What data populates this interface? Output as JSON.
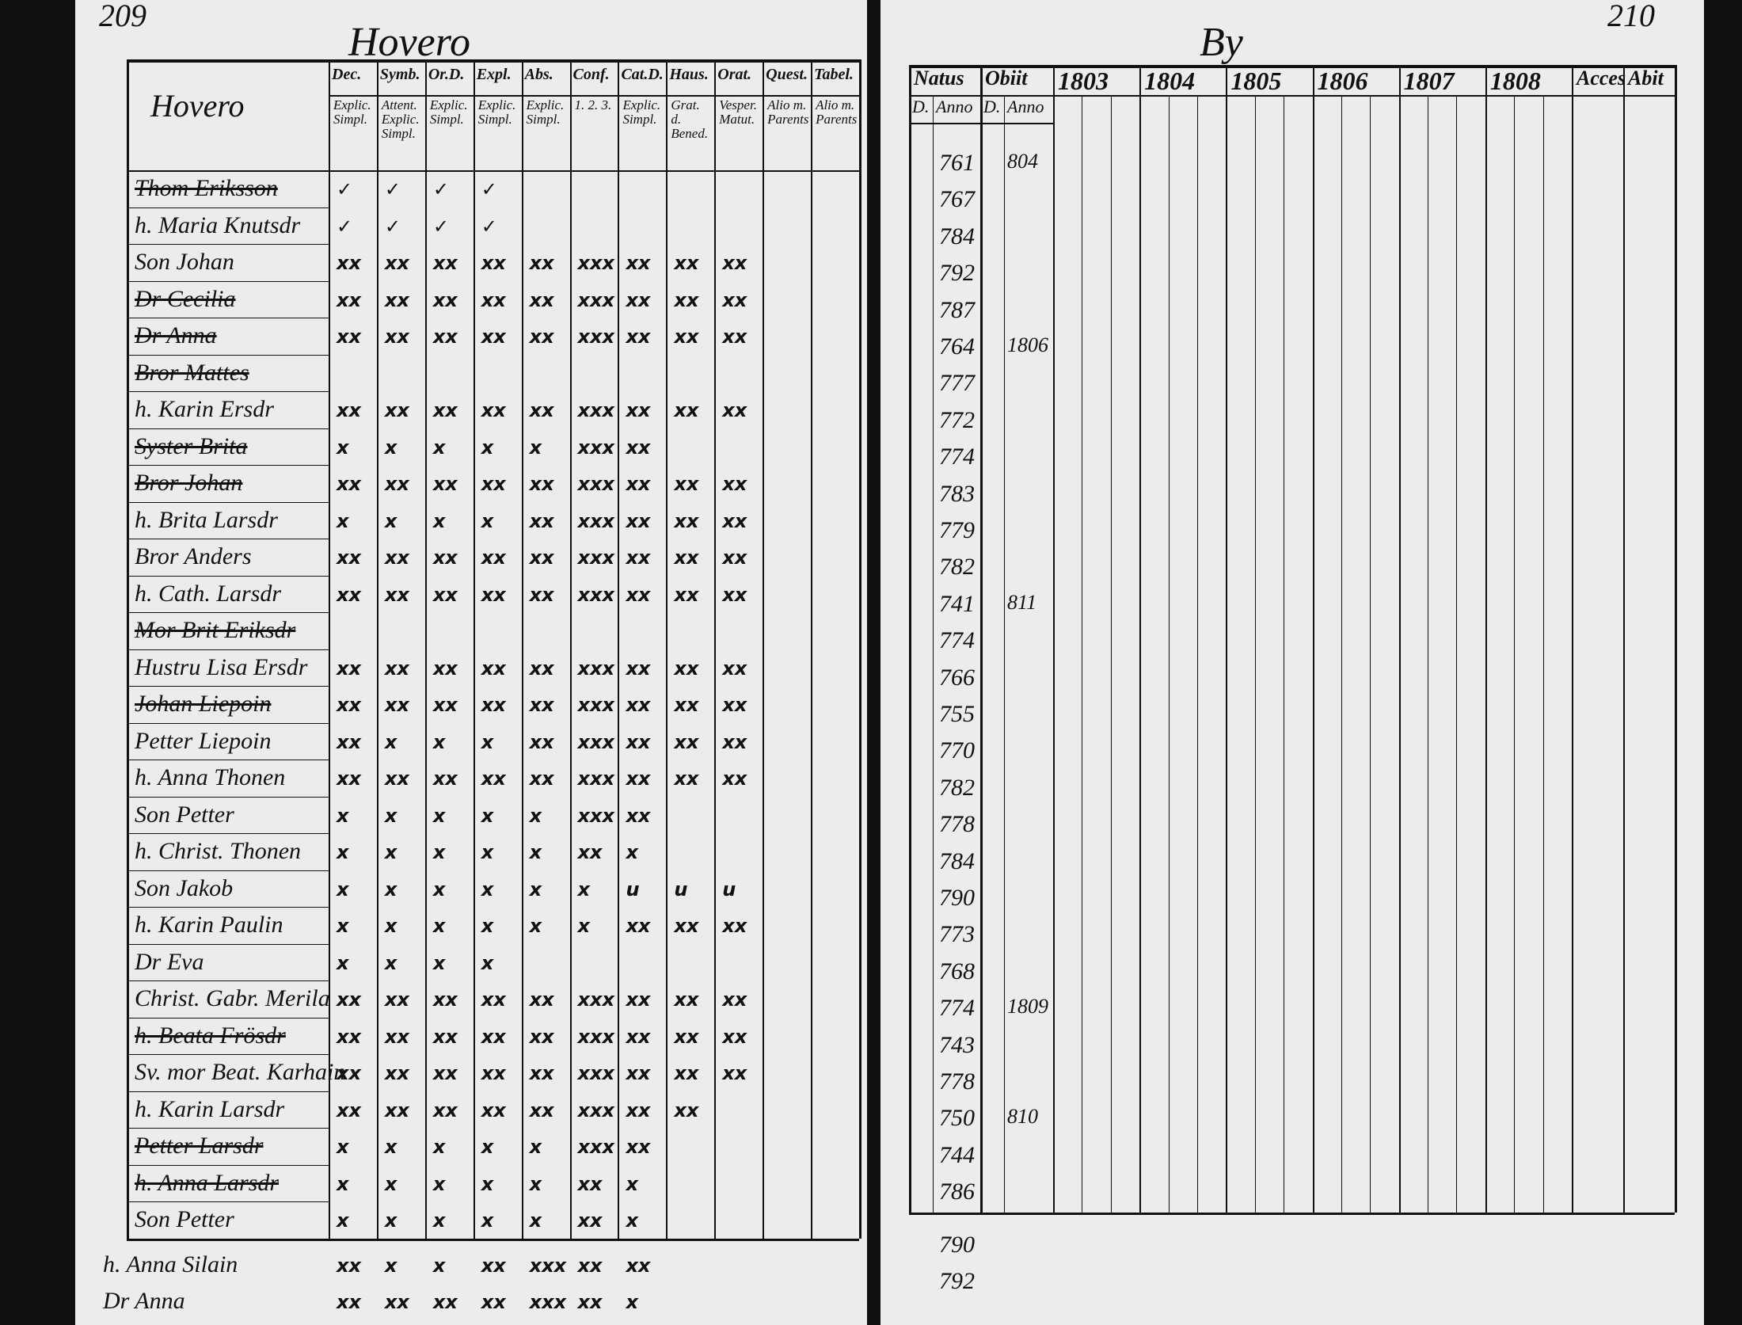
{
  "left_page": {
    "page_number": "209",
    "title": "Hovero",
    "name_header": "Hovero",
    "headings": [
      "Dec.",
      "Symb.",
      "Or.D.",
      "Expl.",
      "Abs.",
      "Conf.",
      "Cat.D.",
      "Haus.",
      "Orat.",
      "Quest.",
      "Tabel."
    ],
    "sub_headings": [
      "Explic. Simpl.",
      "Attent. Explic. Simpl.",
      "Explic. Simpl.",
      "Explic. Simpl.",
      "Explic. Simpl.",
      "1. 2. 3.",
      "Explic. Simpl.",
      "Grat. d. Bened.",
      "Vesper. Matut.",
      "Alio m. Parents",
      "Alio m. Parents"
    ],
    "rows": [
      {
        "name": "Thom Eriksson",
        "struck": true,
        "marks": [
          "✓",
          "✓",
          "✓",
          "✓"
        ]
      },
      {
        "name": "h. Maria Knutsdr",
        "marks": [
          "✓",
          "✓",
          "✓",
          "✓"
        ]
      },
      {
        "name": "Son Johan",
        "marks": [
          "xx",
          "xx",
          "xx",
          "xx",
          "xx",
          "xxx",
          "xx",
          "xx",
          "xx"
        ]
      },
      {
        "name": "Dr Cecilia",
        "struck": true,
        "marks": [
          "xx",
          "xx",
          "xx",
          "xx",
          "xx",
          "xxx",
          "xx",
          "xx",
          "xx"
        ]
      },
      {
        "name": "Dr Anna",
        "struck": true,
        "marks": [
          "xx",
          "xx",
          "xx",
          "xx",
          "xx",
          "xxx",
          "xx",
          "xx",
          "xx"
        ]
      },
      {
        "name": "Bror Mattes",
        "struck": true,
        "marks": []
      },
      {
        "name": "h. Karin Ersdr",
        "marks": [
          "xx",
          "xx",
          "xx",
          "xx",
          "xx",
          "xxx",
          "xx",
          "xx",
          "xx"
        ]
      },
      {
        "name": "Syster Brita",
        "struck": true,
        "marks": [
          "x",
          "x",
          "x",
          "x",
          "x",
          "xxx",
          "xx"
        ]
      },
      {
        "name": "Bror Johan",
        "struck": true,
        "marks": [
          "xx",
          "xx",
          "xx",
          "xx",
          "xx",
          "xxx",
          "xx",
          "xx",
          "xx"
        ]
      },
      {
        "name": "h. Brita Larsdr",
        "marks": [
          "x",
          "x",
          "x",
          "x",
          "xx",
          "xxx",
          "xx",
          "xx",
          "xx"
        ]
      },
      {
        "name": "Bror Anders",
        "marks": [
          "xx",
          "xx",
          "xx",
          "xx",
          "xx",
          "xxx",
          "xx",
          "xx",
          "xx"
        ]
      },
      {
        "name": "h. Cath. Larsdr",
        "marks": [
          "xx",
          "xx",
          "xx",
          "xx",
          "xx",
          "xxx",
          "xx",
          "xx",
          "xx"
        ]
      },
      {
        "name": "Mor Brit Eriksdr",
        "struck": true,
        "marks": []
      },
      {
        "name": "Hustru Lisa Ersdr",
        "marks": [
          "xx",
          "xx",
          "xx",
          "xx",
          "xx",
          "xxx",
          "xx",
          "xx",
          "xx"
        ]
      },
      {
        "name": "Johan Liepoin",
        "struck": true,
        "marks": [
          "xx",
          "xx",
          "xx",
          "xx",
          "xx",
          "xxx",
          "xx",
          "xx",
          "xx"
        ]
      },
      {
        "name": "Petter Liepoin",
        "marks": [
          "xx",
          "x",
          "x",
          "x",
          "xx",
          "xxx",
          "xx",
          "xx",
          "xx"
        ]
      },
      {
        "name": "h. Anna Thonen",
        "marks": [
          "xx",
          "xx",
          "xx",
          "xx",
          "xx",
          "xxx",
          "xx",
          "xx",
          "xx"
        ]
      },
      {
        "name": "Son Petter",
        "marks": [
          "x",
          "x",
          "x",
          "x",
          "x",
          "xxx",
          "xx"
        ]
      },
      {
        "name": "h. Christ. Thonen",
        "marks": [
          "x",
          "x",
          "x",
          "x",
          "x",
          "xx",
          "x"
        ]
      },
      {
        "name": "Son Jakob",
        "marks": [
          "x",
          "x",
          "x",
          "x",
          "x",
          "x",
          "u",
          "u",
          "u"
        ]
      },
      {
        "name": "h. Karin Paulin",
        "marks": [
          "x",
          "x",
          "x",
          "x",
          "x",
          "x",
          "xx",
          "xx",
          "xx"
        ]
      },
      {
        "name": "Dr Eva",
        "marks": [
          "x",
          "x",
          "x",
          "x"
        ]
      },
      {
        "name": "Christ. Gabr. Merila",
        "marks": [
          "xx",
          "xx",
          "xx",
          "xx",
          "xx",
          "xxx",
          "xx",
          "xx",
          "xx"
        ]
      },
      {
        "name": "h. Beata Frösdr",
        "struck": true,
        "marks": [
          "xx",
          "xx",
          "xx",
          "xx",
          "xx",
          "xxx",
          "xx",
          "xx",
          "xx"
        ]
      },
      {
        "name": "Sv. mor Beat. Karhain",
        "marks": [
          "xx",
          "xx",
          "xx",
          "xx",
          "xx",
          "xxx",
          "xx",
          "xx",
          "xx"
        ]
      },
      {
        "name": "h. Karin Larsdr",
        "marks": [
          "xx",
          "xx",
          "xx",
          "xx",
          "xx",
          "xxx",
          "xx",
          "xx"
        ]
      },
      {
        "name": "Petter Larsdr",
        "struck": true,
        "marks": [
          "x",
          "x",
          "x",
          "x",
          "x",
          "xxx",
          "xx"
        ]
      },
      {
        "name": "h. Anna Larsdr",
        "struck": true,
        "marks": [
          "x",
          "x",
          "x",
          "x",
          "x",
          "xx",
          "x"
        ]
      },
      {
        "name": "Son Petter",
        "marks": [
          "x",
          "x",
          "x",
          "x",
          "x",
          "xx",
          "x"
        ]
      },
      {
        "name": "h. Anna Silain",
        "marks": [
          "xx",
          "x",
          "x",
          "xx",
          "xxx",
          "xx",
          "xx"
        ]
      },
      {
        "name": "Dr Anna",
        "marks": [
          "xx",
          "xx",
          "xx",
          "xx",
          "xxx",
          "xx",
          "x"
        ]
      }
    ]
  },
  "right_page": {
    "page_number": "210",
    "title": "By",
    "headings": [
      "Natus",
      "Obiit",
      "1803",
      "1804",
      "1805",
      "1806",
      "1807",
      "1808",
      "Acces",
      "Abit"
    ],
    "sub_headings": [
      "D.",
      "Anno",
      "D.",
      "Anno"
    ],
    "rows": [
      {
        "born": "761",
        "died": "804"
      },
      {
        "born": "767"
      },
      {
        "born": "784"
      },
      {
        "born": "792"
      },
      {
        "born": "787"
      },
      {
        "born": "764",
        "died": "1806"
      },
      {
        "born": "777"
      },
      {
        "born": "772"
      },
      {
        "born": "774"
      },
      {
        "born": "783"
      },
      {
        "born": "779"
      },
      {
        "born": "782"
      },
      {
        "born": "741",
        "died": "811"
      },
      {
        "born": "774"
      },
      {
        "born": "766"
      },
      {
        "born": "755"
      },
      {
        "born": "770"
      },
      {
        "born": "782"
      },
      {
        "born": "778"
      },
      {
        "born": "784"
      },
      {
        "born": "790"
      },
      {
        "born": "773"
      },
      {
        "born": "768"
      },
      {
        "born": "774",
        "died": "1809"
      },
      {
        "born": "743"
      },
      {
        "born": "778"
      },
      {
        "born": "750",
        "died": "810"
      },
      {
        "born": "744"
      },
      {
        "born": "786"
      },
      {
        "born": "790"
      },
      {
        "born": "792"
      }
    ]
  }
}
